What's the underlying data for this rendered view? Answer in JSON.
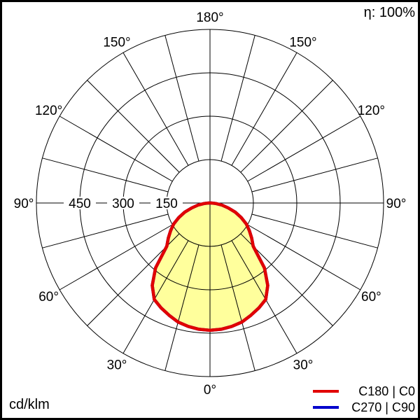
{
  "header": {
    "efficiency": "η: 100%"
  },
  "footer": {
    "unit": "cd/klm"
  },
  "legend": {
    "items": [
      {
        "label": "C180 | C0",
        "color": "#e10000"
      },
      {
        "label": "C270 | C90",
        "color": "#0000cc"
      }
    ]
  },
  "chart_data": {
    "type": "polar-line",
    "description": "Luminous intensity distribution polar diagram, 0° at nadir (bottom), 180° at top",
    "units": "cd/klm",
    "efficiency_label": "η: 100%",
    "angle_axis": {
      "grid_step_deg": 15,
      "label_angles_deg": [
        0,
        30,
        60,
        90,
        120,
        150,
        180
      ],
      "labels": [
        "0°",
        "30°",
        "60°",
        "90°",
        "120°",
        "150°",
        "180°"
      ]
    },
    "r_axis": {
      "min": 0,
      "max": 600,
      "ticks": [
        150,
        300,
        450
      ],
      "tick_labels": [
        "150",
        "300",
        "450"
      ]
    },
    "gamma_deg": [
      0,
      5,
      10,
      15,
      20,
      25,
      30,
      35,
      40,
      45,
      50,
      55,
      60,
      65,
      70,
      75,
      80,
      85,
      90
    ],
    "series": [
      {
        "name": "C180 | C0",
        "color": "#e10000",
        "fill": "#ffff9c",
        "symmetric": true,
        "values": [
          440,
          438,
          433,
          426,
          413,
          400,
          385,
          348,
          293,
          211,
          188,
          166,
          145,
          119,
          93,
          65,
          42,
          20,
          4
        ]
      },
      {
        "name": "C270 | C90",
        "color": "#0000cc",
        "fill": null,
        "symmetric": true,
        "values": [
          440,
          438,
          433,
          426,
          413,
          400,
          385,
          348,
          293,
          211,
          188,
          166,
          145,
          119,
          93,
          65,
          42,
          20,
          4
        ]
      }
    ]
  }
}
